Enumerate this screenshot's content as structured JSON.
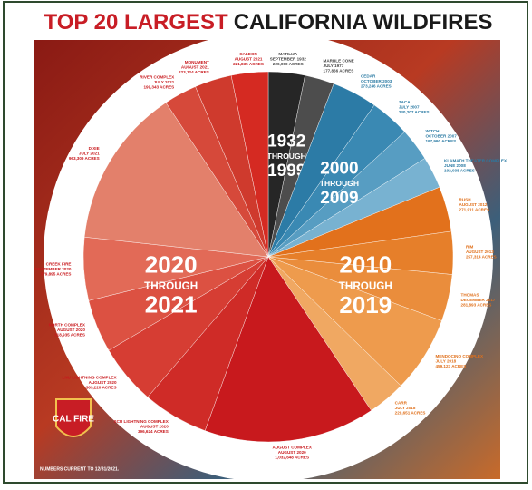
{
  "chart_data": {
    "type": "pie",
    "title": [
      "TOP 20 LARGEST",
      "CALIFORNIA WILDFIRES"
    ],
    "note": "NUMBERS CURRENT TO 12/31/2021.",
    "logo": "CAL FIRE",
    "groups": [
      {
        "label": [
          "1932",
          "THROUGH",
          "1999"
        ],
        "text_color": "#444444",
        "categories": [
          "MATILIJA",
          "MARBLE CONE"
        ],
        "dates": [
          "SEPTEMBER 1932",
          "JULY 1977"
        ],
        "values": [
          220000,
          177866
        ],
        "value_labels": [
          "220,000 ACRES",
          "177,866 ACRES"
        ],
        "colors": [
          "#262626",
          "#4d4d4d"
        ]
      },
      {
        "label": [
          "2000",
          "THROUGH",
          "2009"
        ],
        "text_color": "#2a7aa3",
        "categories": [
          "CEDAR",
          "ZACA",
          "WITCH",
          "KLAMATH THEATER COMPLEX"
        ],
        "dates": [
          "OCTOBER 2003",
          "JULY 2007",
          "OCTOBER 2007",
          "JUNE 2008"
        ],
        "values": [
          273246,
          240207,
          197990,
          192038
        ],
        "value_labels": [
          "273,246 ACRES",
          "240,207 ACRES",
          "197,990 ACRES",
          "192,038 ACRES"
        ],
        "colors": [
          "#2c7ba6",
          "#3a89b3",
          "#579dc2",
          "#78b2d1"
        ]
      },
      {
        "label": [
          "2010",
          "THROUGH",
          "2019"
        ],
        "text_color": "#e0701b",
        "categories": [
          "RUSH",
          "RIM",
          "THOMAS",
          "MENDOCINO COMPLEX",
          "CARR"
        ],
        "dates": [
          "AUGUST 2012",
          "AUGUST 2013",
          "DECEMBER 2017",
          "JULY 2018",
          "JULY 2018"
        ],
        "values": [
          271911,
          257314,
          281893,
          459123,
          229651
        ],
        "value_labels": [
          "271,911 ACRES",
          "257,314 ACRES",
          "281,893 ACRES",
          "459,123 ACRES",
          "229,651 ACRES"
        ],
        "colors": [
          "#e2711c",
          "#e67f2a",
          "#ea8d3c",
          "#ee9b4d",
          "#f0a862"
        ]
      },
      {
        "label": [
          "2020",
          "THROUGH",
          "2021"
        ],
        "text_color": "#c8191d",
        "categories": [
          "AUGUST COMPLEX",
          "SCU LIGHTNING COMPLEX",
          "LNU LIGHTNING COMPLEX",
          "NORTH COMPLEX",
          "CREEK FIRE",
          "DIXIE",
          "RIVER COMPLEX",
          "MONUMENT",
          "CALDOR"
        ],
        "dates": [
          "AUGUST 2020",
          "AUGUST 2020",
          "AUGUST 2020",
          "AUGUST 2020",
          "SEPTEMBER 2020",
          "JULY 2021",
          "JULY 2021",
          "AUGUST 2021",
          "AUGUST 2021"
        ],
        "values": [
          1032648,
          396624,
          363220,
          318935,
          379895,
          963309,
          199343,
          223124,
          221835
        ],
        "value_labels": [
          "1,032,648 ACRES",
          "396,624 ACRES",
          "363,220 ACRES",
          "318,935 ACRES",
          "379,895 ACRES",
          "963,309 ACRES",
          "199,343 ACRES",
          "223,124 ACRES",
          "221,835 ACRES"
        ],
        "colors": [
          "#c8191d",
          "#cf2b27",
          "#d63d33",
          "#dc5142",
          "#e26a57",
          "#e3806b",
          "#d6493a",
          "#cf3a2d",
          "#d52a22"
        ]
      }
    ]
  }
}
